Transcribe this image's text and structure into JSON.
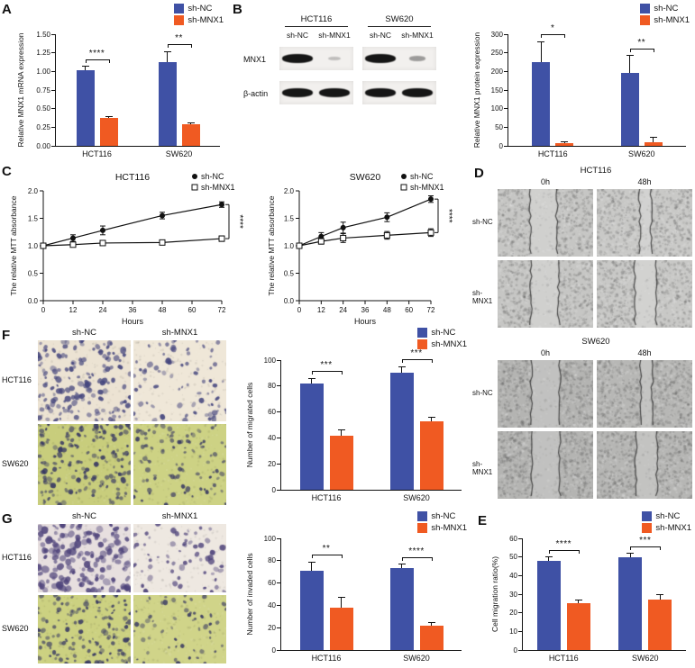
{
  "panel_labels": {
    "A": "A",
    "B": "B",
    "C": "C",
    "D": "D",
    "E": "E",
    "F": "F",
    "G": "G"
  },
  "legend": {
    "items": [
      {
        "label": "sh-NC",
        "color": "#3f51a5"
      },
      {
        "label": "sh-MNX1",
        "color": "#f05a22"
      }
    ]
  },
  "panels": {
    "B_blot": {
      "cell_lines": [
        "HCT116",
        "SW620"
      ],
      "lane_labels": [
        "sh-NC",
        "sh-MNX1",
        "sh-NC",
        "sh-MNX1"
      ],
      "rows": [
        {
          "label": "MNX1",
          "intensities": [
            1,
            0.12,
            1,
            0.3
          ]
        },
        {
          "label": "β-actin",
          "intensities": [
            1,
            1,
            1,
            1
          ]
        }
      ]
    },
    "D": {
      "groups": [
        {
          "title": "HCT116",
          "cols": [
            "0h",
            "48h"
          ],
          "rows": [
            "sh-NC",
            "sh-MNX1"
          ]
        },
        {
          "title": "SW620",
          "cols": [
            "0h",
            "48h"
          ],
          "rows": [
            "sh-NC",
            "sh-MNX1"
          ]
        }
      ]
    },
    "F_images": {
      "cols": [
        "sh-NC",
        "sh-MNX1"
      ],
      "rows": [
        "HCT116",
        "SW620"
      ]
    },
    "G_images": {
      "cols": [
        "sh-NC",
        "sh-MNX1"
      ],
      "rows": [
        "HCT116",
        "SW620"
      ]
    }
  },
  "chart_data": [
    {
      "id": "A",
      "type": "bar",
      "ylabel": "Relative MNX1 mRNA expression",
      "categories": [
        "HCT116",
        "SW620"
      ],
      "series": [
        {
          "name": "sh-NC",
          "color": "#3f51a5",
          "values": [
            1.02,
            1.13
          ],
          "errors": [
            0.05,
            0.14
          ]
        },
        {
          "name": "sh-MNX1",
          "color": "#f05a22",
          "values": [
            0.37,
            0.29
          ],
          "errors": [
            0.02,
            0.02
          ]
        }
      ],
      "ylim": [
        0,
        1.5
      ],
      "yticks": [
        "0.00",
        "0.25",
        "0.50",
        "0.75",
        "1.00",
        "1.25",
        "1.50"
      ],
      "significance": [
        "****",
        "**"
      ],
      "legend_position": "top-right"
    },
    {
      "id": "B",
      "type": "bar",
      "ylabel": "Relative MNX1 protein expression",
      "categories": [
        "HCT116",
        "SW620"
      ],
      "series": [
        {
          "name": "sh-NC",
          "color": "#3f51a5",
          "values": [
            225,
            197
          ],
          "errors": [
            55,
            45
          ]
        },
        {
          "name": "sh-MNX1",
          "color": "#f05a22",
          "values": [
            8,
            10
          ],
          "errors": [
            4,
            12
          ]
        }
      ],
      "ylim": [
        0,
        300
      ],
      "yticks": [
        "0",
        "50",
        "100",
        "150",
        "200",
        "250",
        "300"
      ],
      "significance": [
        "*",
        "**"
      ],
      "legend_position": "top-right"
    },
    {
      "id": "C1",
      "type": "line",
      "title": "HCT116",
      "xlabel": "Hours",
      "ylabel": "The relative MTT absorbance",
      "x": [
        0,
        12,
        24,
        48,
        72
      ],
      "xlim": [
        0,
        72
      ],
      "xticks": [
        "0",
        "12",
        "24",
        "36",
        "48",
        "60",
        "72"
      ],
      "series": [
        {
          "name": "sh-NC",
          "marker": "filled-circle",
          "values": [
            1.0,
            1.14,
            1.28,
            1.55,
            1.75
          ],
          "errors": [
            0.03,
            0.06,
            0.08,
            0.06,
            0.05
          ]
        },
        {
          "name": "sh-MNX1",
          "marker": "open-square",
          "values": [
            1.0,
            1.02,
            1.05,
            1.06,
            1.13
          ],
          "errors": [
            0.03,
            0.04,
            0.04,
            0.04,
            0.05
          ]
        }
      ],
      "ylim": [
        0,
        2.0
      ],
      "yticks": [
        "0.0",
        "0.5",
        "1.0",
        "1.5",
        "2.0"
      ],
      "significance": "****",
      "legend_position": "top-right"
    },
    {
      "id": "C2",
      "type": "line",
      "title": "SW620",
      "xlabel": "Hours",
      "ylabel": "The relative MTT absorbance",
      "x": [
        0,
        12,
        24,
        48,
        72
      ],
      "xlim": [
        0,
        72
      ],
      "xticks": [
        "0",
        "12",
        "24",
        "36",
        "48",
        "60",
        "72"
      ],
      "series": [
        {
          "name": "sh-NC",
          "marker": "filled-circle",
          "values": [
            1.0,
            1.17,
            1.33,
            1.52,
            1.85
          ],
          "errors": [
            0.04,
            0.07,
            0.1,
            0.08,
            0.06
          ]
        },
        {
          "name": "sh-MNX1",
          "marker": "open-square",
          "values": [
            1.0,
            1.08,
            1.14,
            1.19,
            1.24
          ],
          "errors": [
            0.04,
            0.05,
            0.08,
            0.07,
            0.07
          ]
        }
      ],
      "ylim": [
        0,
        2.0
      ],
      "yticks": [
        "0.0",
        "0.5",
        "1.0",
        "1.5",
        "2.0"
      ],
      "significance": "****",
      "legend_position": "top-right"
    },
    {
      "id": "F",
      "type": "bar",
      "ylabel": "Number of migrated cells",
      "categories": [
        "HCT116",
        "SW620"
      ],
      "series": [
        {
          "name": "sh-NC",
          "color": "#3f51a5",
          "values": [
            82,
            90
          ],
          "errors": [
            4,
            5
          ]
        },
        {
          "name": "sh-MNX1",
          "color": "#f05a22",
          "values": [
            42,
            53
          ],
          "errors": [
            4,
            3
          ]
        }
      ],
      "ylim": [
        0,
        100
      ],
      "yticks": [
        "0",
        "20",
        "40",
        "60",
        "80",
        "100"
      ],
      "significance": [
        "***",
        "***"
      ],
      "legend_position": "top-right"
    },
    {
      "id": "G",
      "type": "bar",
      "ylabel": "Number of invaded cells",
      "categories": [
        "HCT116",
        "SW620"
      ],
      "series": [
        {
          "name": "sh-NC",
          "color": "#3f51a5",
          "values": [
            71,
            73
          ],
          "errors": [
            8,
            4
          ]
        },
        {
          "name": "sh-MNX1",
          "color": "#f05a22",
          "values": [
            38,
            22
          ],
          "errors": [
            9,
            3
          ]
        }
      ],
      "ylim": [
        0,
        100
      ],
      "yticks": [
        "0",
        "20",
        "40",
        "60",
        "80",
        "100"
      ],
      "significance": [
        "**",
        "****"
      ],
      "legend_position": "top-right"
    },
    {
      "id": "E",
      "type": "bar",
      "ylabel": "Cell migration ratio(%)",
      "categories": [
        "HCT116",
        "SW620"
      ],
      "series": [
        {
          "name": "sh-NC",
          "color": "#3f51a5",
          "values": [
            48,
            50
          ],
          "errors": [
            2,
            2
          ]
        },
        {
          "name": "sh-MNX1",
          "color": "#f05a22",
          "values": [
            25,
            27
          ],
          "errors": [
            2,
            3
          ]
        }
      ],
      "ylim": [
        0,
        60
      ],
      "yticks": [
        "0",
        "10",
        "20",
        "30",
        "40",
        "50",
        "60"
      ],
      "significance": [
        "****",
        "***"
      ],
      "legend_position": "top-right"
    }
  ]
}
